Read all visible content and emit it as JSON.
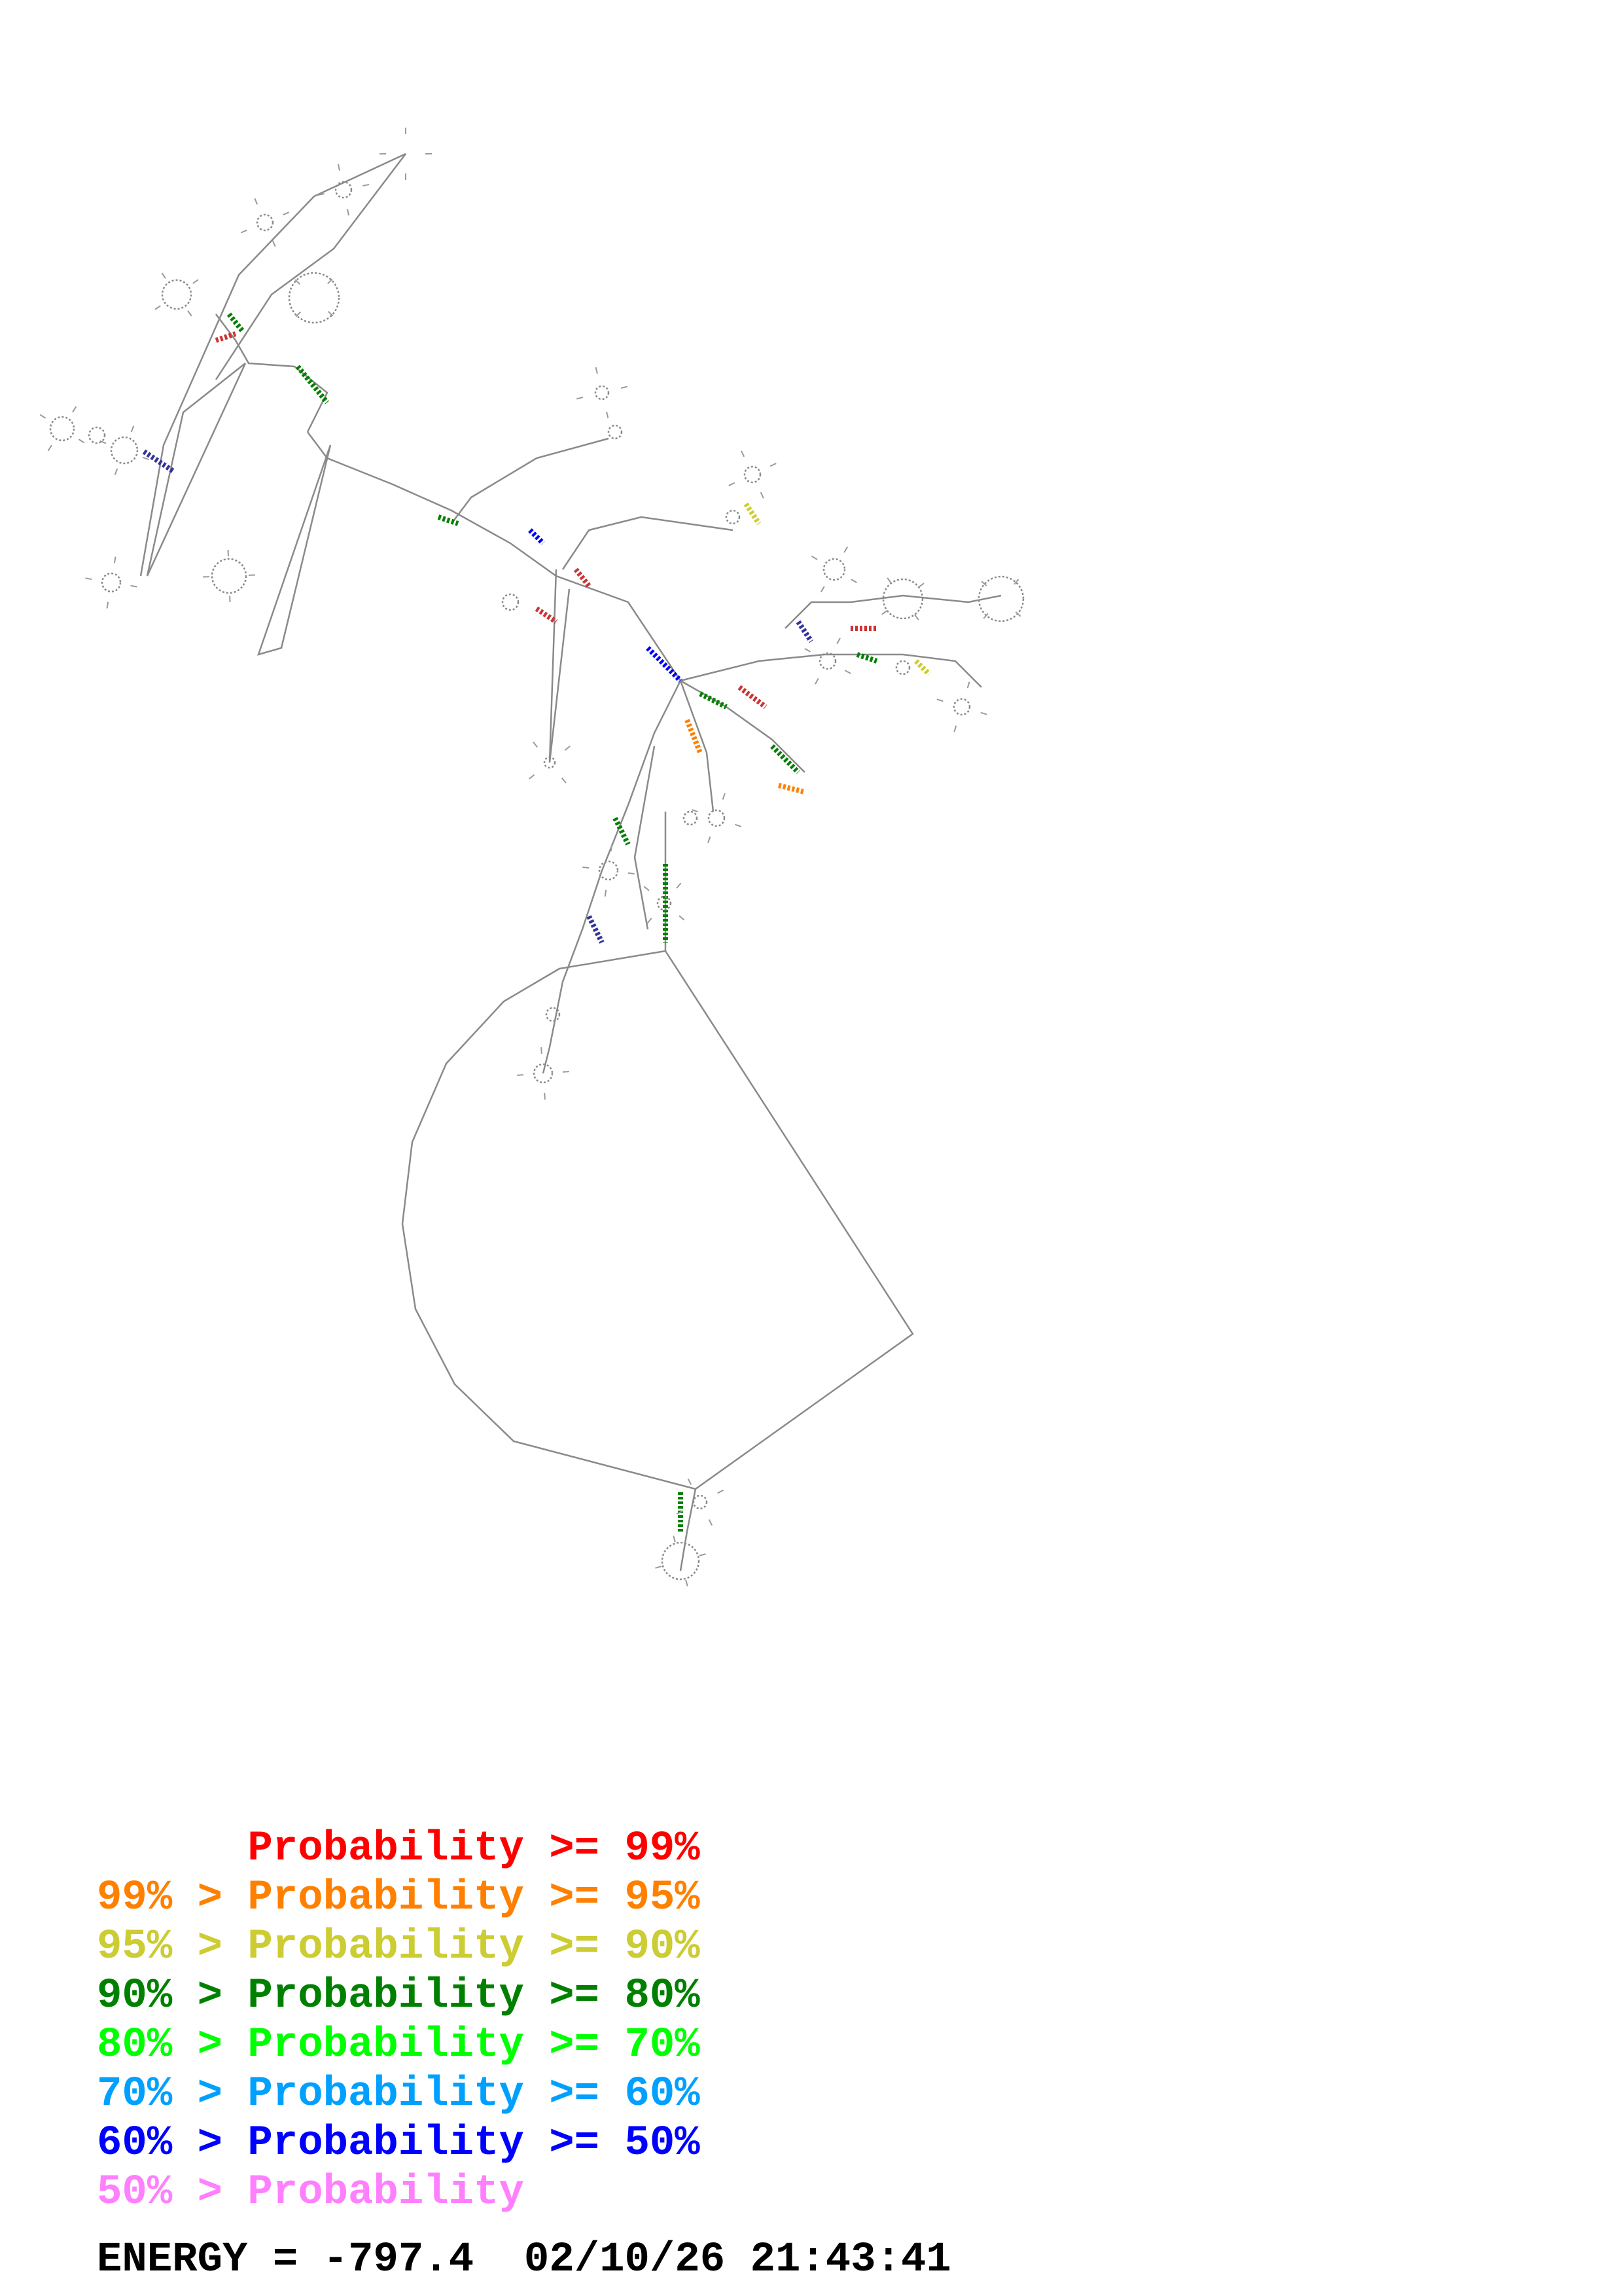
{
  "legend": {
    "rows": [
      {
        "prefix": "",
        "label": "Probability >= 99%",
        "color": "#ff0000"
      },
      {
        "prefix": "99% > ",
        "label": "Probability >= 95%",
        "color": "#ff8000"
      },
      {
        "prefix": "95% > ",
        "label": "Probability >= 90%",
        "color": "#cccc33"
      },
      {
        "prefix": "90% > ",
        "label": "Probability >= 80%",
        "color": "#008000"
      },
      {
        "prefix": "80% > ",
        "label": "Probability >= 70%",
        "color": "#00ff00"
      },
      {
        "prefix": "70% > ",
        "label": "Probability >= 60%",
        "color": "#00a0ff"
      },
      {
        "prefix": "60% > ",
        "label": "Probability >= 50%",
        "color": "#0000ff"
      },
      {
        "prefix": "50% > ",
        "label": "Probability",
        "color": "#ff80ff"
      }
    ]
  },
  "footer": {
    "energy_label": "ENERGY = ",
    "energy_value": "-797.4",
    "timestamp": "02/10/26 21:43:41"
  }
}
